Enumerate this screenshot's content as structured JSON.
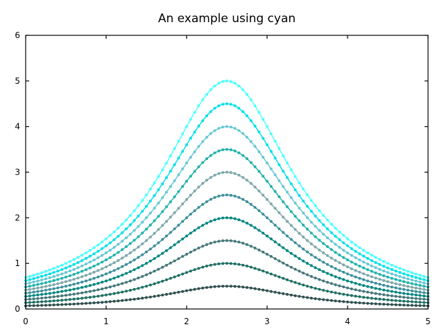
{
  "chart_data": {
    "type": "line",
    "title": "An example using cyan",
    "xlabel": "",
    "ylabel": "",
    "xlim": [
      0,
      5
    ],
    "ylim": [
      0,
      6
    ],
    "xticks": [
      "0",
      "1",
      "2",
      "3",
      "4",
      "5"
    ],
    "yticks": [
      "0",
      "1",
      "2",
      "3",
      "4",
      "5",
      "6"
    ],
    "grid": false,
    "legend": "none",
    "x": [
      0,
      0.5,
      1,
      1.5,
      2,
      2.5,
      3,
      3.5,
      4,
      4.5,
      5
    ],
    "series": [
      {
        "color": "#2f4f4f",
        "peak": 0.5,
        "values": [
          0.069,
          0.092,
          0.138,
          0.25,
          0.4,
          0.5,
          0.4,
          0.25,
          0.138,
          0.092,
          0.069
        ]
      },
      {
        "color": "#1e6f63",
        "peak": 1.0,
        "values": [
          0.138,
          0.184,
          0.276,
          0.5,
          0.8,
          1.0,
          0.8,
          0.5,
          0.276,
          0.184,
          0.138
        ]
      },
      {
        "color": "#44767a",
        "peak": 1.5,
        "values": [
          0.207,
          0.276,
          0.414,
          0.75,
          1.2,
          1.5,
          1.2,
          0.75,
          0.414,
          0.276,
          0.207
        ]
      },
      {
        "color": "#00857e",
        "peak": 2.0,
        "values": [
          0.276,
          0.368,
          0.552,
          1.0,
          1.6,
          2.0,
          1.6,
          1.0,
          0.552,
          0.368,
          0.276
        ]
      },
      {
        "color": "#3c8f9b",
        "peak": 2.5,
        "values": [
          0.345,
          0.46,
          0.69,
          1.25,
          2.0,
          2.5,
          2.0,
          1.25,
          0.69,
          0.46,
          0.345
        ]
      },
      {
        "color": "#7ea8aa",
        "peak": 3.0,
        "values": [
          0.414,
          0.552,
          0.828,
          1.5,
          2.4,
          3.0,
          2.4,
          1.5,
          0.828,
          0.552,
          0.414
        ]
      },
      {
        "color": "#20b2aa",
        "peak": 3.5,
        "values": [
          0.483,
          0.644,
          0.966,
          1.75,
          2.8,
          3.5,
          2.8,
          1.75,
          0.966,
          0.644,
          0.483
        ]
      },
      {
        "color": "#66c8d4",
        "peak": 4.0,
        "values": [
          0.552,
          0.736,
          1.104,
          2.0,
          3.2,
          4.0,
          3.2,
          2.0,
          1.104,
          0.736,
          0.552
        ]
      },
      {
        "color": "#00e0e8",
        "peak": 4.5,
        "values": [
          0.621,
          0.828,
          1.242,
          2.25,
          3.6,
          4.5,
          3.6,
          2.25,
          1.242,
          0.828,
          0.621
        ]
      },
      {
        "color": "#4dffff",
        "peak": 5.0,
        "values": [
          0.69,
          0.92,
          1.38,
          2.5,
          4.0,
          5.0,
          4.0,
          2.5,
          1.38,
          0.92,
          0.69
        ]
      }
    ]
  }
}
